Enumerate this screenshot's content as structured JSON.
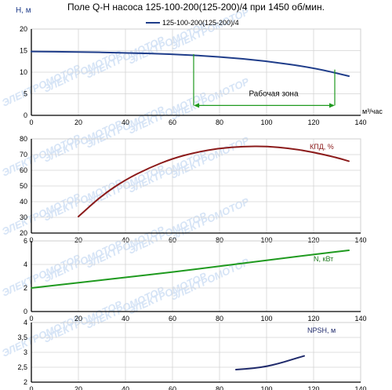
{
  "title": "Поле Q-H насоса 125-100-200(125-200)/4 при 1450 об/мин.",
  "watermark": "ЭЛЕКТРОМОТОР",
  "colors": {
    "qh": "#1f3d8a",
    "efficiency": "#8b1a1a",
    "power": "#1f9a1f",
    "npsh": "#1f2a6b",
    "zone": "#1f9a1f",
    "grid": "#d4d4d4",
    "watermark": "#d6e4f6"
  },
  "chart_data": [
    {
      "type": "line",
      "name": "Q-H",
      "ylabel": "Н, м",
      "xlabel": "м³/час",
      "xlim": [
        0,
        140
      ],
      "ylim": [
        0,
        20
      ],
      "x_ticks": [
        "0",
        "20",
        "40",
        "60",
        "80",
        "100",
        "120",
        "140"
      ],
      "y_ticks": [
        "0",
        "5",
        "10",
        "15",
        "20"
      ],
      "grid": true,
      "legend_position": "top-right",
      "series": [
        {
          "name": "125-100-200(125-200)/4",
          "x": [
            0,
            20,
            40,
            60,
            80,
            100,
            120,
            135
          ],
          "y": [
            14.8,
            14.7,
            14.5,
            14.2,
            13.6,
            12.6,
            11.0,
            9.1
          ]
        }
      ],
      "work_zone": {
        "label": "Рабочая зона",
        "x_start": 69,
        "x_end": 129
      }
    },
    {
      "type": "line",
      "label": "КПД, %",
      "xlim": [
        0,
        140
      ],
      "ylim": [
        20,
        80
      ],
      "x_ticks": [
        "0",
        "20",
        "40",
        "60",
        "80",
        "100",
        "120",
        "140"
      ],
      "y_ticks": [
        "20",
        "30",
        "40",
        "50",
        "60",
        "70",
        "80"
      ],
      "grid": true,
      "series": [
        {
          "x": [
            20,
            30,
            40,
            50,
            60,
            70,
            80,
            90,
            100,
            110,
            120,
            130,
            135
          ],
          "y": [
            30.5,
            44,
            54,
            61.5,
            67.5,
            71.5,
            74,
            75.2,
            75.3,
            74,
            71.5,
            68,
            65.8
          ]
        }
      ]
    },
    {
      "type": "line",
      "label": "N, кВт",
      "xlim": [
        0,
        140
      ],
      "ylim": [
        0,
        6
      ],
      "x_ticks": [
        "0",
        "20",
        "40",
        "60",
        "80",
        "100",
        "120",
        "140"
      ],
      "y_ticks": [
        "0",
        "2",
        "4",
        "6"
      ],
      "grid": true,
      "series": [
        {
          "x": [
            0,
            20,
            40,
            60,
            80,
            100,
            120,
            135
          ],
          "y": [
            2.0,
            2.45,
            2.9,
            3.35,
            3.85,
            4.35,
            4.85,
            5.2
          ]
        }
      ]
    },
    {
      "type": "line",
      "label": "NPSH, м",
      "xlim": [
        0,
        140
      ],
      "ylim": [
        2,
        4
      ],
      "x_ticks": [
        "0",
        "20",
        "40",
        "60",
        "80",
        "100",
        "120",
        "140"
      ],
      "y_ticks": [
        "2",
        "2,5",
        "3",
        "3,5",
        "4"
      ],
      "grid": true,
      "series": [
        {
          "x": [
            87,
            95,
            100,
            105,
            110,
            116
          ],
          "y": [
            2.42,
            2.47,
            2.53,
            2.62,
            2.74,
            2.88
          ]
        }
      ]
    }
  ]
}
